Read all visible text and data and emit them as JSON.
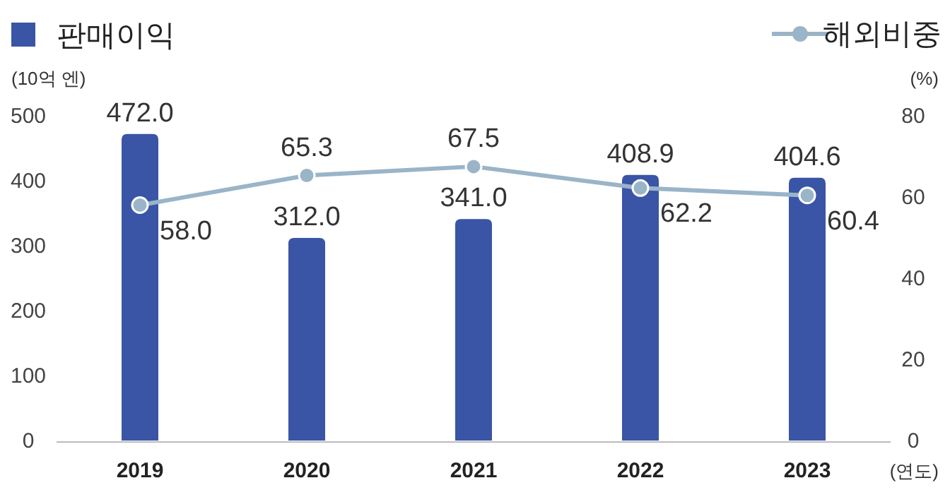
{
  "chart_data": {
    "type": "bar",
    "categories": [
      "2019",
      "2020",
      "2021",
      "2022",
      "2023"
    ],
    "series": [
      {
        "name": "판매이익",
        "axis": "y",
        "color": "#3a55a6",
        "values": [
          472.0,
          312.0,
          341.0,
          408.9,
          404.6
        ],
        "value_labels": [
          "472.0",
          "312.0",
          "341.0",
          "408.9",
          "404.6"
        ]
      },
      {
        "name": "해외비중",
        "type": "line",
        "axis": "y2",
        "color": "#9ab4c8",
        "marker": "circle",
        "values": [
          58.0,
          65.3,
          67.5,
          62.2,
          60.4
        ],
        "value_labels": [
          "58.0",
          "65.3",
          "67.5",
          "62.2",
          "60.4"
        ]
      }
    ],
    "ylim": [
      0,
      500
    ],
    "yticks": [
      0,
      100,
      200,
      300,
      400,
      500
    ],
    "y2lim": [
      0,
      80
    ],
    "y2ticks": [
      0,
      20,
      40,
      60,
      80
    ],
    "ylabel": "(10억 엔)",
    "y2label": "(%)",
    "xlabel": "(연도)",
    "legend": "top",
    "grid": false
  }
}
